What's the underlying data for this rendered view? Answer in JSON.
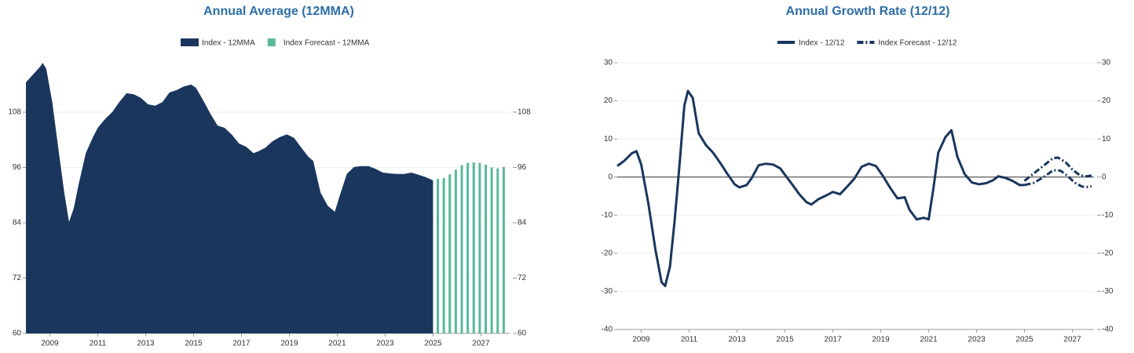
{
  "chart_data": [
    {
      "type": "area",
      "title": "Annual Average (12MMA)",
      "xlim": [
        2008,
        2028.2
      ],
      "xticks": [
        2009,
        2011,
        2013,
        2015,
        2017,
        2019,
        2021,
        2023,
        2025,
        2027
      ],
      "ylim": [
        60,
        120
      ],
      "yticks": [
        60,
        72,
        84,
        96,
        108
      ],
      "grid": true,
      "series": [
        {
          "name": "Index - 12MMA",
          "type": "area",
          "color": "#1a365d",
          "x": [
            2008.0,
            2008.3,
            2008.6,
            2008.7,
            2008.85,
            2009.1,
            2009.4,
            2009.6,
            2009.8,
            2010.0,
            2010.2,
            2010.5,
            2010.8,
            2011.0,
            2011.3,
            2011.6,
            2011.9,
            2012.2,
            2012.5,
            2012.8,
            2013.1,
            2013.4,
            2013.7,
            2014.0,
            2014.3,
            2014.6,
            2014.9,
            2015.1,
            2015.4,
            2015.7,
            2016.0,
            2016.3,
            2016.6,
            2016.9,
            2017.2,
            2017.5,
            2017.7,
            2018.0,
            2018.3,
            2018.6,
            2018.9,
            2019.2,
            2019.5,
            2019.8,
            2020.0,
            2020.3,
            2020.6,
            2020.9,
            2021.1,
            2021.4,
            2021.7,
            2022.0,
            2022.3,
            2022.6,
            2022.9,
            2023.2,
            2023.5,
            2023.8,
            2024.1,
            2024.4,
            2024.7,
            2025.0
          ],
          "values": [
            114.5,
            116.2,
            117.9,
            118.7,
            117.4,
            110.2,
            98.3,
            90.6,
            84.2,
            87.2,
            92.3,
            99.1,
            102.6,
            104.6,
            106.5,
            108,
            110.2,
            112.1,
            111.9,
            111.1,
            109.7,
            109.4,
            110.2,
            112.3,
            112.8,
            113.6,
            114,
            113.3,
            110.6,
            107.7,
            105.1,
            104.6,
            103.1,
            101.2,
            100.5,
            99.1,
            99.5,
            100.3,
            101.7,
            102.6,
            103.2,
            102.4,
            100.3,
            98.3,
            97.4,
            90.6,
            87.7,
            86.4,
            89.8,
            94.6,
            96.1,
            96.3,
            96.3,
            95.7,
            94.9,
            94.7,
            94.6,
            94.6,
            94.9,
            94.4,
            93.9,
            93.2
          ]
        },
        {
          "name": "Index Forecast - 12MMA",
          "type": "bar",
          "color": "#5bb89a",
          "x": [
            2025.2,
            2025.45,
            2025.7,
            2025.95,
            2026.2,
            2026.45,
            2026.7,
            2026.95,
            2027.2,
            2027.45,
            2027.7,
            2027.95
          ],
          "values": [
            93.5,
            93.7,
            94.5,
            95.5,
            96.5,
            97,
            97.1,
            97,
            96.6,
            96,
            95.8,
            96.1
          ]
        }
      ]
    },
    {
      "type": "line",
      "title": "Annual Growth Rate (12/12)",
      "xlim": [
        2008,
        2027.9
      ],
      "xticks": [
        2009,
        2011,
        2013,
        2015,
        2017,
        2019,
        2021,
        2023,
        2025,
        2027
      ],
      "ylim": [
        -40,
        30
      ],
      "yticks": [
        -40,
        -30,
        -20,
        -10,
        0,
        10,
        20,
        30
      ],
      "grid": true,
      "series": [
        {
          "name": "Index - 12/12",
          "type": "line",
          "color": "#1a365d",
          "dashed": false,
          "x": [
            2008.0,
            2008.3,
            2008.6,
            2008.8,
            2009.0,
            2009.3,
            2009.6,
            2009.85,
            2010.0,
            2010.2,
            2010.4,
            2010.6,
            2010.8,
            2010.95,
            2011.15,
            2011.4,
            2011.7,
            2012.0,
            2012.3,
            2012.6,
            2012.9,
            2013.1,
            2013.4,
            2013.6,
            2013.9,
            2014.2,
            2014.5,
            2014.8,
            2015.0,
            2015.3,
            2015.6,
            2015.9,
            2016.1,
            2016.4,
            2016.7,
            2017.0,
            2017.3,
            2017.6,
            2017.9,
            2018.2,
            2018.5,
            2018.8,
            2019.1,
            2019.4,
            2019.7,
            2020.0,
            2020.2,
            2020.5,
            2020.8,
            2021.0,
            2021.2,
            2021.4,
            2021.7,
            2021.95,
            2022.2,
            2022.5,
            2022.8,
            2023.1,
            2023.4,
            2023.7,
            2023.9,
            2024.2,
            2024.5,
            2024.8,
            2025.0
          ],
          "values": [
            2.9,
            4.3,
            6.2,
            6.8,
            3.3,
            -7,
            -19.3,
            -27.6,
            -28.6,
            -23.5,
            -11.1,
            3.3,
            18.7,
            22.6,
            20.8,
            11.5,
            8.4,
            6.4,
            3.7,
            0.8,
            -1.9,
            -2.7,
            -2.1,
            -0.4,
            3.1,
            3.5,
            3.3,
            2.3,
            0.6,
            -1.9,
            -4.5,
            -6.6,
            -7.2,
            -5.8,
            -4.9,
            -3.9,
            -4.5,
            -2.5,
            -0.4,
            2.7,
            3.5,
            2.9,
            0.2,
            -2.9,
            -5.6,
            -5.3,
            -8.6,
            -11.1,
            -10.7,
            -11.1,
            -2.9,
            6.4,
            10.5,
            12.3,
            5.3,
            0.8,
            -1.4,
            -1.9,
            -1.6,
            -0.8,
            0.2,
            -0.2,
            -1.0,
            -2.1,
            -2.1
          ]
        },
        {
          "name": "Index Forecast - 12/12",
          "type": "line",
          "color": "#1a365d",
          "dashed": true,
          "x": [
            2025.0,
            2025.4,
            2025.8,
            2026.2,
            2026.4,
            2026.7,
            2027.0,
            2027.3,
            2027.6,
            2027.8
          ],
          "values": [
            -1,
            1,
            3,
            5,
            5.1,
            4,
            2,
            0.5,
            0.2,
            0.4
          ]
        },
        {
          "type": "line",
          "color": "#1a365d",
          "dashed": true,
          "x": [
            2025.0,
            2025.4,
            2025.8,
            2026.2,
            2026.5,
            2026.8,
            2027.1,
            2027.4,
            2027.6,
            2027.8
          ],
          "values": [
            -2.1,
            -1.5,
            0,
            1.8,
            1.7,
            0.3,
            -1.5,
            -2.5,
            -2.6,
            -2.4
          ]
        }
      ]
    }
  ]
}
